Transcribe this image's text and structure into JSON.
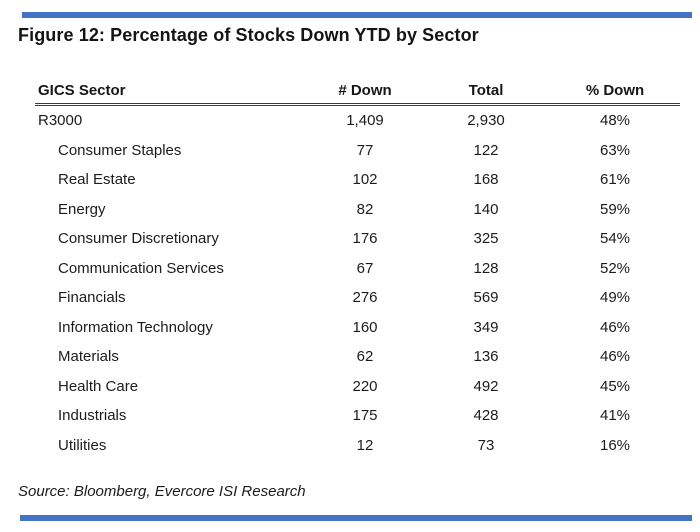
{
  "figure": {
    "title": "Figure 12: Percentage of Stocks Down YTD by Sector",
    "source": "Source: Bloomberg, Evercore ISI Research"
  },
  "colors": {
    "accent_bar": "#4472C4",
    "text": "#1c1c1c",
    "header_rule": "#3a3a3a"
  },
  "chart_data": {
    "type": "table",
    "title": "Figure 12: Percentage of Stocks Down YTD by Sector",
    "columns": [
      "GICS Sector",
      "# Down",
      "Total",
      "% Down"
    ],
    "rows": [
      {
        "sector": "R3000",
        "down": "1,409",
        "total": "2,930",
        "pct_down": "48%",
        "indent": false
      },
      {
        "sector": "Consumer Staples",
        "down": "77",
        "total": "122",
        "pct_down": "63%",
        "indent": true
      },
      {
        "sector": "Real Estate",
        "down": "102",
        "total": "168",
        "pct_down": "61%",
        "indent": true
      },
      {
        "sector": "Energy",
        "down": "82",
        "total": "140",
        "pct_down": "59%",
        "indent": true
      },
      {
        "sector": "Consumer Discretionary",
        "down": "176",
        "total": "325",
        "pct_down": "54%",
        "indent": true
      },
      {
        "sector": "Communication Services",
        "down": "67",
        "total": "128",
        "pct_down": "52%",
        "indent": true
      },
      {
        "sector": "Financials",
        "down": "276",
        "total": "569",
        "pct_down": "49%",
        "indent": true
      },
      {
        "sector": "Information Technology",
        "down": "160",
        "total": "349",
        "pct_down": "46%",
        "indent": true
      },
      {
        "sector": "Materials",
        "down": "62",
        "total": "136",
        "pct_down": "46%",
        "indent": true
      },
      {
        "sector": "Health Care",
        "down": "220",
        "total": "492",
        "pct_down": "45%",
        "indent": true
      },
      {
        "sector": "Industrials",
        "down": "175",
        "total": "428",
        "pct_down": "41%",
        "indent": true
      },
      {
        "sector": "Utilities",
        "down": "12",
        "total": "73",
        "pct_down": "16%",
        "indent": true
      }
    ],
    "source": "Source: Bloomberg, Evercore ISI Research"
  }
}
